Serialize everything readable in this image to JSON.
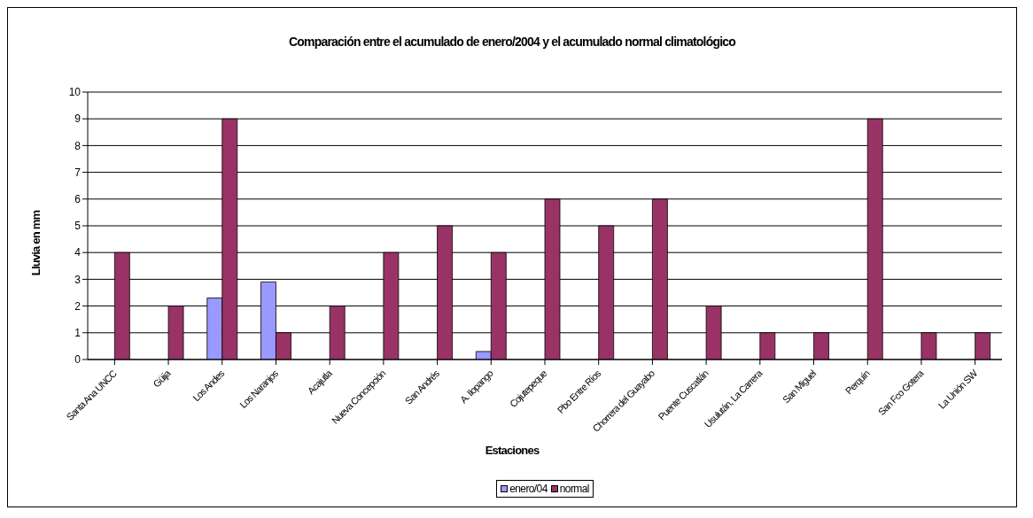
{
  "chart_data": {
    "type": "bar",
    "title": "Comparación entre el acumulado de enero/2004 y el acumulado normal climatológico",
    "xlabel": "Estaciones",
    "ylabel": "Lluvia en mm",
    "categories": [
      "Santa Ana UNCC",
      "Güija",
      "Los Andes",
      "Los Naranjos",
      "Acajutla",
      "Nueva Concepción",
      "San Andrés",
      "A. Ilopango",
      "Cojutepeque",
      "Pbo Entre Ríos",
      "Chorrera del Guayabo",
      "Puente Cuscatlán",
      "Usulután, La Carrera",
      "San Miguel",
      "Perquín",
      "San Fco Gotera",
      "La Unión SW"
    ],
    "series": [
      {
        "name": "enero/04",
        "color": "#9999ff",
        "values": [
          null,
          null,
          2.3,
          2.9,
          null,
          null,
          null,
          0.3,
          null,
          null,
          null,
          null,
          null,
          null,
          null,
          null,
          null
        ]
      },
      {
        "name": "normal",
        "color": "#993366",
        "values": [
          4,
          2,
          9,
          1,
          2,
          4,
          5,
          4,
          6,
          5,
          6,
          2,
          1,
          1,
          9,
          1,
          1
        ]
      }
    ],
    "ylim": [
      0,
      10
    ],
    "yticks": [
      0,
      1,
      2,
      3,
      4,
      5,
      6,
      7,
      8,
      9,
      10
    ],
    "grid": "y",
    "legend": "bottom"
  }
}
